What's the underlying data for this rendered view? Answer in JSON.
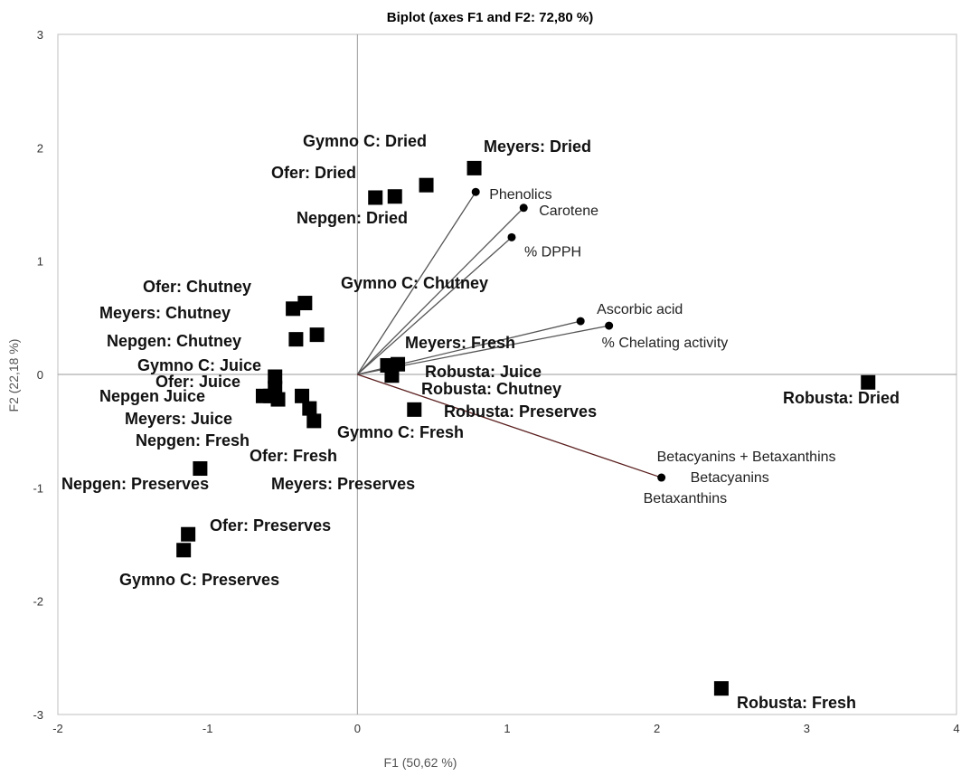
{
  "chart_data": {
    "type": "scatter",
    "title": "Biplot (axes F1 and F2: 72,80 %)",
    "xlabel": "F1 (50,62 %)",
    "ylabel": "F2 (22,18 %)",
    "xlim": [
      -2,
      4
    ],
    "ylim": [
      -3,
      3
    ],
    "xticks": [
      -2,
      -1,
      0,
      1,
      2,
      3,
      4
    ],
    "yticks": [
      -3,
      -2,
      -1,
      0,
      1,
      2,
      3
    ],
    "observations": [
      {
        "label": "Gymno C: Dried",
        "x": 0.46,
        "y": 1.67
      },
      {
        "label": "Meyers: Dried",
        "x": 0.78,
        "y": 1.82
      },
      {
        "label": "Ofer: Dried",
        "x": 0.25,
        "y": 1.57
      },
      {
        "label": "Nepgen: Dried",
        "x": 0.12,
        "y": 1.56
      },
      {
        "label": "Ofer: Chutney",
        "x": -0.35,
        "y": 0.63
      },
      {
        "label": "Meyers: Chutney",
        "x": -0.43,
        "y": 0.58
      },
      {
        "label": "Nepgen: Chutney",
        "x": -0.27,
        "y": 0.35
      },
      {
        "label": "Gymno C: Chutney",
        "x": -0.41,
        "y": 0.31
      },
      {
        "label": "Gymno C: Juice",
        "x": -0.55,
        "y": -0.02
      },
      {
        "label": "Ofer: Juice",
        "x": -0.55,
        "y": -0.12
      },
      {
        "label": "Nepgen Juice",
        "x": -0.63,
        "y": -0.19
      },
      {
        "label": "Meyers: Juice",
        "x": -0.53,
        "y": -0.22
      },
      {
        "label": "Nepgen:  Fresh",
        "x": -0.37,
        "y": -0.19
      },
      {
        "label": "Ofer: Fresh",
        "x": -0.32,
        "y": -0.3
      },
      {
        "label": "Meyers: Fresh",
        "x": -0.29,
        "y": -0.41
      },
      {
        "label": "Robusta: Juice",
        "x": 0.27,
        "y": 0.09
      },
      {
        "label": "Robusta: Chutney",
        "x": 0.2,
        "y": 0.08
      },
      {
        "label": "Robusta: Preserves",
        "x": 0.23,
        "y": -0.01
      },
      {
        "label": "Gymno C: Fresh",
        "x": 0.38,
        "y": -0.31
      },
      {
        "label": "Nepgen: Preserves",
        "x": -1.05,
        "y": -0.83
      },
      {
        "label": "Meyers: Preserves",
        "x": -0.58,
        "y": -0.19
      },
      {
        "label": "Ofer: Preserves",
        "x": -1.13,
        "y": -1.41
      },
      {
        "label": "Gymno C: Preserves",
        "x": -1.16,
        "y": -1.55
      },
      {
        "label": "Robusta: Dried",
        "x": 3.41,
        "y": -0.07
      },
      {
        "label": "Robusta: Fresh",
        "x": 2.43,
        "y": -2.77
      }
    ],
    "variables": [
      {
        "label": "Phenolics",
        "x": 0.79,
        "y": 1.61
      },
      {
        "label": "Carotene",
        "x": 1.11,
        "y": 1.47
      },
      {
        "label": "% DPPH",
        "x": 1.03,
        "y": 1.21
      },
      {
        "label": "Ascorbic acid",
        "x": 1.49,
        "y": 0.47
      },
      {
        "label": "% Chelating activity",
        "x": 1.68,
        "y": 0.43
      },
      {
        "label": "Betacyanins + Betaxanthins",
        "x": 2.03,
        "y": -0.91
      },
      {
        "label": "Betacyanins",
        "x": 2.03,
        "y": -0.91
      },
      {
        "label": "Betaxanthins",
        "x": 2.03,
        "y": -0.91
      }
    ]
  },
  "colors": {
    "marker": "#000000",
    "arrow": "#555555",
    "betalain_arrow": "#5a1e1e",
    "axis_line": "#999999",
    "frame": "#bfbfbf"
  }
}
